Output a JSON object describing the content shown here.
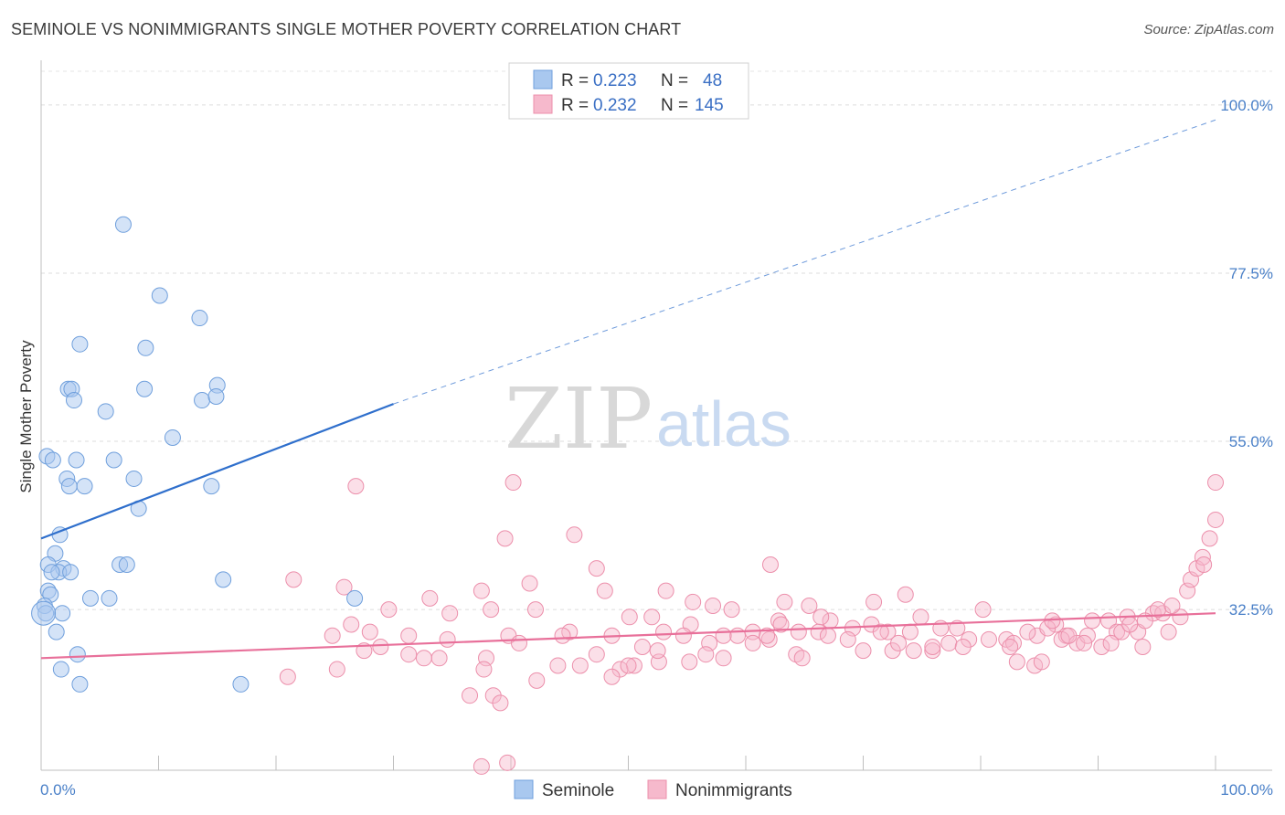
{
  "title": "SEMINOLE VS NONIMMIGRANTS SINGLE MOTHER POVERTY CORRELATION CHART",
  "source": "Source: ZipAtlas.com",
  "watermark": {
    "zip": "ZIP",
    "atlas": "atlas"
  },
  "legend": {
    "rows": [
      {
        "r_label": "R =",
        "r_value": "0.223",
        "n_label": "N =",
        "n_value": "48"
      },
      {
        "r_label": "R =",
        "r_value": "0.232",
        "n_label": "N =",
        "n_value": "145"
      }
    ]
  },
  "colors": {
    "seminole_fill": "#a9c8ef",
    "seminole_stroke": "#6f9fdc",
    "seminole_line": "#2f6fcc",
    "nonimm_fill": "#f6b9cc",
    "nonimm_stroke": "#ec8fab",
    "nonimm_line": "#e8709a",
    "tick_text": "#4a80c8"
  },
  "chart_data": {
    "type": "scatter",
    "title": "SEMINOLE VS NONIMMIGRANTS SINGLE MOTHER POVERTY CORRELATION CHART",
    "xlabel": "",
    "ylabel": "Single Mother Poverty",
    "xlim": [
      0,
      100
    ],
    "ylim": [
      11.0,
      105.0
    ],
    "x_tick_labels": [
      "0.0%",
      "100.0%"
    ],
    "y_ticks": [
      32.5,
      55.0,
      77.5,
      100.0
    ],
    "y_tick_labels": [
      "32.5%",
      "55.0%",
      "77.5%",
      "100.0%"
    ],
    "grid": true,
    "legend_position": "top-center",
    "series": [
      {
        "name": "Seminole",
        "r": 0.223,
        "n": 48,
        "trend": {
          "x0": 0,
          "y0": 42.0,
          "x1": 30,
          "y1": 60.0,
          "dashed_to": {
            "x": 100,
            "y": 98.0
          }
        },
        "points": [
          [
            7.0,
            84.0
          ],
          [
            10.1,
            74.5
          ],
          [
            13.5,
            71.5
          ],
          [
            3.3,
            68.0
          ],
          [
            8.9,
            67.5
          ],
          [
            2.3,
            62.0
          ],
          [
            2.6,
            62.0
          ],
          [
            8.8,
            62.0
          ],
          [
            15.0,
            62.5
          ],
          [
            2.8,
            60.5
          ],
          [
            13.7,
            60.5
          ],
          [
            14.9,
            61.0
          ],
          [
            5.5,
            59.0
          ],
          [
            11.2,
            55.5
          ],
          [
            0.5,
            53.0
          ],
          [
            1.0,
            52.5
          ],
          [
            3.0,
            52.5
          ],
          [
            6.2,
            52.5
          ],
          [
            2.2,
            50.0
          ],
          [
            7.9,
            50.0
          ],
          [
            2.4,
            49.0
          ],
          [
            3.7,
            49.0
          ],
          [
            14.5,
            49.0
          ],
          [
            8.3,
            46.0
          ],
          [
            1.6,
            42.5
          ],
          [
            1.2,
            40.0
          ],
          [
            0.6,
            38.5
          ],
          [
            6.7,
            38.5
          ],
          [
            7.3,
            38.5
          ],
          [
            1.9,
            38.0
          ],
          [
            1.5,
            37.5
          ],
          [
            2.5,
            37.5
          ],
          [
            0.9,
            37.5
          ],
          [
            15.5,
            36.5
          ],
          [
            0.6,
            35.0
          ],
          [
            0.8,
            34.5
          ],
          [
            4.2,
            34.0
          ],
          [
            5.8,
            34.0
          ],
          [
            26.7,
            34.0
          ],
          [
            0.3,
            33.0
          ],
          [
            0.4,
            32.0
          ],
          [
            1.8,
            32.0
          ],
          [
            1.3,
            29.5
          ],
          [
            3.1,
            26.5
          ],
          [
            1.7,
            24.5
          ],
          [
            3.3,
            22.5
          ],
          [
            17.0,
            22.5
          ],
          [
            0.2,
            32.0
          ]
        ]
      },
      {
        "name": "Nonimmigrants",
        "r": 0.232,
        "n": 145,
        "trend": {
          "x0": 0,
          "y0": 26.0,
          "x1": 100,
          "y1": 32.0
        },
        "points": [
          [
            26.8,
            49.0
          ],
          [
            40.2,
            49.5
          ],
          [
            39.5,
            42.0
          ],
          [
            45.4,
            42.5
          ],
          [
            47.3,
            38.0
          ],
          [
            62.1,
            38.5
          ],
          [
            21.5,
            36.5
          ],
          [
            25.8,
            35.5
          ],
          [
            41.6,
            36.0
          ],
          [
            33.1,
            34.0
          ],
          [
            53.2,
            35.0
          ],
          [
            37.5,
            35.0
          ],
          [
            48.0,
            35.0
          ],
          [
            42.1,
            32.5
          ],
          [
            55.5,
            33.5
          ],
          [
            57.2,
            33.0
          ],
          [
            58.8,
            32.5
          ],
          [
            63.3,
            33.5
          ],
          [
            65.4,
            33.0
          ],
          [
            70.9,
            33.5
          ],
          [
            73.6,
            34.5
          ],
          [
            80.2,
            32.5
          ],
          [
            26.4,
            30.5
          ],
          [
            29.6,
            32.5
          ],
          [
            38.3,
            32.5
          ],
          [
            34.8,
            32.0
          ],
          [
            28.0,
            29.5
          ],
          [
            31.3,
            29.0
          ],
          [
            39.8,
            29.0
          ],
          [
            45.0,
            29.5
          ],
          [
            50.1,
            31.5
          ],
          [
            55.3,
            30.5
          ],
          [
            52.0,
            31.5
          ],
          [
            53.0,
            29.5
          ],
          [
            54.7,
            29.0
          ],
          [
            59.3,
            29.0
          ],
          [
            62.8,
            31.0
          ],
          [
            64.5,
            29.5
          ],
          [
            67.2,
            31.0
          ],
          [
            69.1,
            30.0
          ],
          [
            70.7,
            30.5
          ],
          [
            72.1,
            29.5
          ],
          [
            74.0,
            29.5
          ],
          [
            74.9,
            31.5
          ],
          [
            76.6,
            30.0
          ],
          [
            79.0,
            28.5
          ],
          [
            82.2,
            28.5
          ],
          [
            84.8,
            29.0
          ],
          [
            86.4,
            30.5
          ],
          [
            87.3,
            29.0
          ],
          [
            88.2,
            28.0
          ],
          [
            89.5,
            31.0
          ],
          [
            90.9,
            31.0
          ],
          [
            91.6,
            29.5
          ],
          [
            92.5,
            31.5
          ],
          [
            93.4,
            29.5
          ],
          [
            94.7,
            32.0
          ],
          [
            95.5,
            32.0
          ],
          [
            24.8,
            29.0
          ],
          [
            28.9,
            27.5
          ],
          [
            34.6,
            28.5
          ],
          [
            40.7,
            28.0
          ],
          [
            44.4,
            29.0
          ],
          [
            48.6,
            29.0
          ],
          [
            51.2,
            27.5
          ],
          [
            56.9,
            28.0
          ],
          [
            58.1,
            29.0
          ],
          [
            60.6,
            29.5
          ],
          [
            62.0,
            28.5
          ],
          [
            66.2,
            29.5
          ],
          [
            68.7,
            28.5
          ],
          [
            72.5,
            27.0
          ],
          [
            75.9,
            27.0
          ],
          [
            77.3,
            28.0
          ],
          [
            80.7,
            28.5
          ],
          [
            82.8,
            28.0
          ],
          [
            84.0,
            29.5
          ],
          [
            86.9,
            28.5
          ],
          [
            89.1,
            29.0
          ],
          [
            90.3,
            27.5
          ],
          [
            91.1,
            28.0
          ],
          [
            92.0,
            29.5
          ],
          [
            93.8,
            27.5
          ],
          [
            96.0,
            29.5
          ],
          [
            97.0,
            31.5
          ],
          [
            31.3,
            26.5
          ],
          [
            33.9,
            26.0
          ],
          [
            32.6,
            26.0
          ],
          [
            37.9,
            26.0
          ],
          [
            44.0,
            25.0
          ],
          [
            45.9,
            25.0
          ],
          [
            47.3,
            26.5
          ],
          [
            50.5,
            25.0
          ],
          [
            52.6,
            25.5
          ],
          [
            56.6,
            26.5
          ],
          [
            58.1,
            26.0
          ],
          [
            60.6,
            28.0
          ],
          [
            61.8,
            29.0
          ],
          [
            64.3,
            26.5
          ],
          [
            67.0,
            29.0
          ],
          [
            70.0,
            27.0
          ],
          [
            71.5,
            29.5
          ],
          [
            73.0,
            28.0
          ],
          [
            74.3,
            27.0
          ],
          [
            75.9,
            27.5
          ],
          [
            78.5,
            27.5
          ],
          [
            82.5,
            27.5
          ],
          [
            83.1,
            25.5
          ],
          [
            84.6,
            25.0
          ],
          [
            85.2,
            25.5
          ],
          [
            87.5,
            29.0
          ],
          [
            88.8,
            28.0
          ],
          [
            21.0,
            23.5
          ],
          [
            25.2,
            24.5
          ],
          [
            37.7,
            24.5
          ],
          [
            42.2,
            23.0
          ],
          [
            49.3,
            24.5
          ],
          [
            50.0,
            25.0
          ],
          [
            48.6,
            23.5
          ],
          [
            64.8,
            26.0
          ],
          [
            92.7,
            30.5
          ],
          [
            94.0,
            31.0
          ],
          [
            95.1,
            32.5
          ],
          [
            96.3,
            33.0
          ],
          [
            97.6,
            35.0
          ],
          [
            97.9,
            36.5
          ],
          [
            98.4,
            38.0
          ],
          [
            98.9,
            39.5
          ],
          [
            99.0,
            38.5
          ],
          [
            99.5,
            42.0
          ],
          [
            100.0,
            44.5
          ],
          [
            100.0,
            49.5
          ],
          [
            36.5,
            21.0
          ],
          [
            38.5,
            21.0
          ],
          [
            39.1,
            20.0
          ],
          [
            37.5,
            11.5
          ],
          [
            39.7,
            12.0
          ],
          [
            52.5,
            27.0
          ],
          [
            55.2,
            25.5
          ],
          [
            27.5,
            27.0
          ],
          [
            63.0,
            30.5
          ],
          [
            78.0,
            30.0
          ],
          [
            85.7,
            30.0
          ],
          [
            86.1,
            31.0
          ],
          [
            66.4,
            31.5
          ]
        ]
      }
    ]
  },
  "bottom_legend": [
    "Seminole",
    "Nonimmigrants"
  ]
}
